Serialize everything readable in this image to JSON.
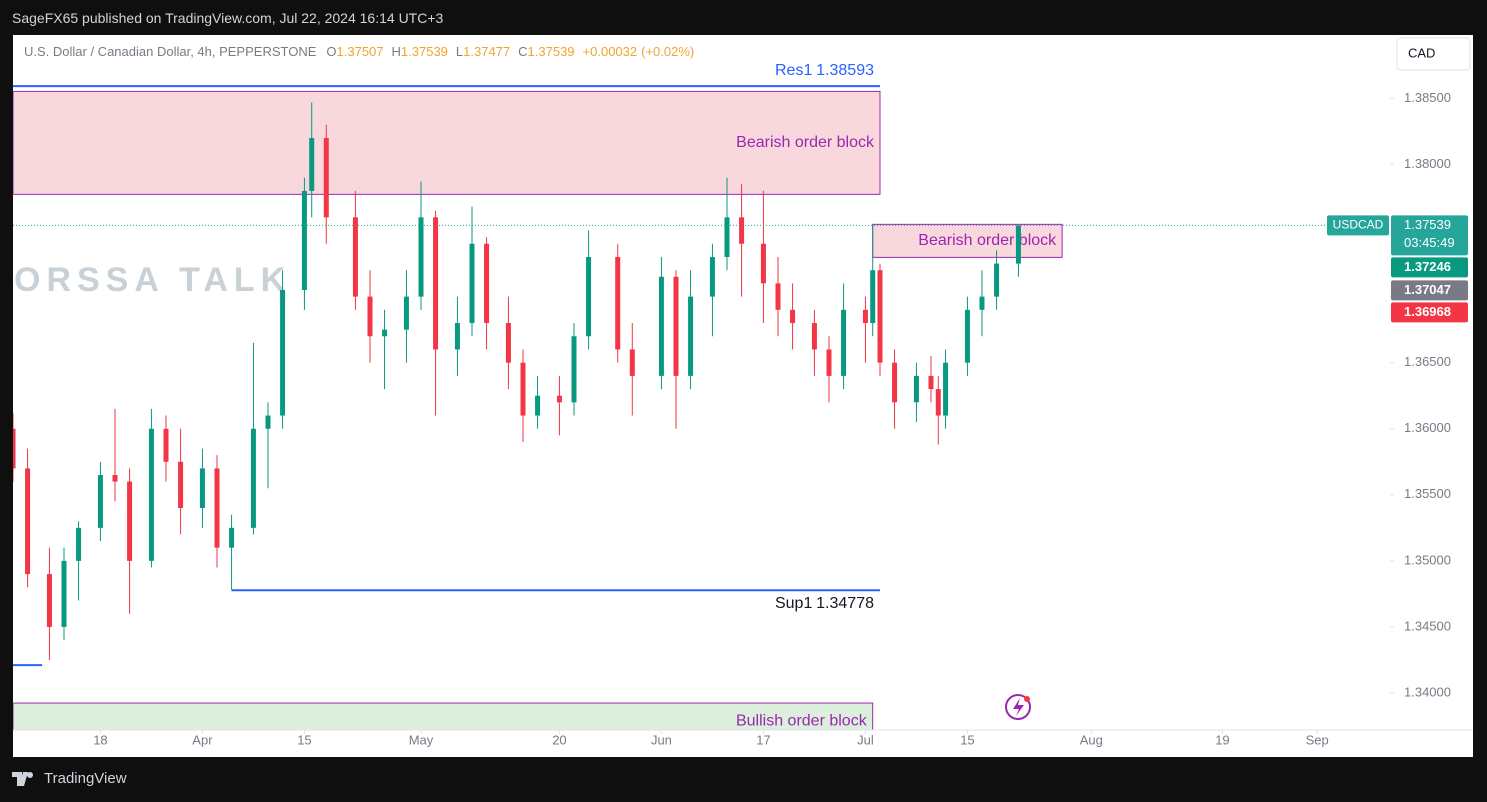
{
  "header": {
    "publisher": "SageFX65 published on TradingView.com, Jul 22, 2024 16:14 UTC+3"
  },
  "footer": {
    "brand": "TradingView"
  },
  "chart_data": {
    "type": "candlestick",
    "title": "U.S. Dollar / Canadian Dollar, 4h, PEPPERSTONE",
    "ohlc_legend": [
      {
        "label": "O",
        "value": 1.37507
      },
      {
        "label": "H",
        "value": 1.37539
      },
      {
        "label": "L",
        "value": 1.37477
      },
      {
        "label": "C",
        "value": 1.37539
      }
    ],
    "change": {
      "value": 0.00032,
      "label": "+0.00032"
    },
    "change_pct": {
      "value": 0.02,
      "label": "(+0.02%)"
    },
    "currency": "CAD",
    "symbol": "USDCAD",
    "countdown": "03:45:49",
    "watermark": "ORSSA TALK",
    "up_color": "#089981",
    "down_color": "#f23645",
    "x": [
      "Mar 6",
      "Mar 8",
      "Mar 11",
      "Mar 13",
      "Mar 15",
      "Mar 18",
      "Mar 20",
      "Mar 22",
      "Mar 25",
      "Mar 27",
      "Mar 29",
      "Apr 1",
      "Apr 3",
      "Apr 5",
      "Apr 8",
      "Apr 10",
      "Apr 12",
      "Apr 15",
      "Apr 16",
      "Apr 18",
      "Apr 22",
      "Apr 24",
      "Apr 26",
      "Apr 29",
      "May 1",
      "May 3",
      "May 6",
      "May 8",
      "May 10",
      "May 13",
      "May 15",
      "May 17",
      "May 20",
      "May 22",
      "May 24",
      "May 28",
      "May 30",
      "Jun 3",
      "Jun 5",
      "Jun 7",
      "Jun 10",
      "Jun 12",
      "Jun 14",
      "Jun 17",
      "Jun 19",
      "Jun 21",
      "Jun 24",
      "Jun 26",
      "Jun 28",
      "Jul 1",
      "Jul 2",
      "Jul 3",
      "Jul 5",
      "Jul 8",
      "Jul 10",
      "Jul 11",
      "Jul 12",
      "Jul 15",
      "Jul 17",
      "Jul 19",
      "Jul 22"
    ],
    "open": [
      1.36,
      1.357,
      1.349,
      1.345,
      1.35,
      1.3525,
      1.3565,
      1.356,
      1.35,
      1.36,
      1.3575,
      1.354,
      1.357,
      1.351,
      1.3525,
      1.36,
      1.361,
      1.3705,
      1.378,
      1.382,
      1.376,
      1.37,
      1.367,
      1.3675,
      1.37,
      1.376,
      1.366,
      1.368,
      1.374,
      1.368,
      1.365,
      1.361,
      1.3625,
      1.362,
      1.367,
      1.373,
      1.366,
      1.364,
      1.3715,
      1.364,
      1.37,
      1.373,
      1.376,
      1.374,
      1.371,
      1.369,
      1.368,
      1.366,
      1.364,
      1.369,
      1.368,
      1.372,
      1.365,
      1.362,
      1.364,
      1.363,
      1.361,
      1.365,
      1.369,
      1.37,
      1.3725
    ],
    "high": [
      1.3612,
      1.3585,
      1.351,
      1.351,
      1.353,
      1.3575,
      1.3615,
      1.357,
      1.3615,
      1.361,
      1.36,
      1.3585,
      1.358,
      1.3535,
      1.3665,
      1.362,
      1.372,
      1.379,
      1.3847,
      1.383,
      1.378,
      1.372,
      1.369,
      1.372,
      1.3787,
      1.3765,
      1.37,
      1.3768,
      1.3745,
      1.37,
      1.366,
      1.364,
      1.364,
      1.368,
      1.375,
      1.374,
      1.368,
      1.373,
      1.372,
      1.372,
      1.374,
      1.379,
      1.3785,
      1.378,
      1.373,
      1.371,
      1.369,
      1.367,
      1.371,
      1.37,
      1.3755,
      1.3725,
      1.366,
      1.365,
      1.3655,
      1.364,
      1.366,
      1.37,
      1.372,
      1.3735,
      1.37539
    ],
    "low": [
      1.356,
      1.348,
      1.3425,
      1.344,
      1.347,
      1.3515,
      1.3545,
      1.346,
      1.3495,
      1.356,
      1.352,
      1.3525,
      1.3495,
      1.3478,
      1.352,
      1.3555,
      1.36,
      1.369,
      1.376,
      1.374,
      1.369,
      1.365,
      1.363,
      1.365,
      1.369,
      1.361,
      1.364,
      1.367,
      1.366,
      1.363,
      1.359,
      1.36,
      1.3595,
      1.361,
      1.366,
      1.365,
      1.361,
      1.363,
      1.36,
      1.363,
      1.367,
      1.372,
      1.37,
      1.368,
      1.367,
      1.366,
      1.364,
      1.362,
      1.363,
      1.365,
      1.367,
      1.364,
      1.36,
      1.3605,
      1.362,
      1.3588,
      1.36,
      1.364,
      1.367,
      1.369,
      1.3715
    ],
    "close": [
      1.357,
      1.349,
      1.345,
      1.35,
      1.3525,
      1.3565,
      1.356,
      1.35,
      1.36,
      1.3575,
      1.354,
      1.357,
      1.351,
      1.3525,
      1.36,
      1.361,
      1.3705,
      1.378,
      1.382,
      1.376,
      1.37,
      1.367,
      1.3675,
      1.37,
      1.376,
      1.366,
      1.368,
      1.374,
      1.368,
      1.365,
      1.361,
      1.3625,
      1.362,
      1.367,
      1.373,
      1.366,
      1.364,
      1.3715,
      1.364,
      1.37,
      1.373,
      1.376,
      1.374,
      1.371,
      1.369,
      1.368,
      1.366,
      1.364,
      1.369,
      1.368,
      1.372,
      1.365,
      1.362,
      1.364,
      1.363,
      1.361,
      1.365,
      1.369,
      1.37,
      1.3725,
      1.37539
    ],
    "xlim": [
      "Mar 6",
      "Sep 11"
    ],
    "xticks": [
      {
        "value": "Mar 18",
        "label": "18"
      },
      {
        "value": "Apr 1",
        "label": "Apr"
      },
      {
        "value": "Apr 15",
        "label": "15"
      },
      {
        "value": "May 1",
        "label": "May"
      },
      {
        "value": "May 20",
        "label": "20"
      },
      {
        "value": "Jun 3",
        "label": "Jun"
      },
      {
        "value": "Jun 17",
        "label": "17"
      },
      {
        "value": "Jul 1",
        "label": "Jul"
      },
      {
        "value": "Jul 15",
        "label": "15"
      },
      {
        "value": "Aug 1",
        "label": "Aug"
      },
      {
        "value": "Aug 19",
        "label": "19"
      },
      {
        "value": "Sep 1",
        "label": "Sep"
      }
    ],
    "ylim": [
      1.3372,
      1.3898
    ],
    "yticks": [
      {
        "value": 1.34,
        "label": "1.34000"
      },
      {
        "value": 1.345,
        "label": "1.34500"
      },
      {
        "value": 1.35,
        "label": "1.35000"
      },
      {
        "value": 1.355,
        "label": "1.35500"
      },
      {
        "value": 1.36,
        "label": "1.36000"
      },
      {
        "value": 1.365,
        "label": "1.36500"
      },
      {
        "value": 1.37,
        "label": "1.37000"
      },
      {
        "value": 1.375,
        "label": "1.37500"
      },
      {
        "value": 1.38,
        "label": "1.38000"
      },
      {
        "value": 1.385,
        "label": "1.38500"
      }
    ],
    "price_tags": [
      {
        "value": 1.37539,
        "color": "#26a69a"
      },
      {
        "value": 1.37246,
        "color": "#089981"
      },
      {
        "value": 1.37047,
        "color": "#787b86"
      },
      {
        "value": 1.36968,
        "color": "#f23645"
      }
    ],
    "levels": [
      {
        "name": "Res1",
        "value": 1.38593,
        "start": "Mar 6",
        "end": "Jul 3",
        "color": "#2962ff",
        "label_color": "#2962ff"
      },
      {
        "name": "Sup1",
        "value": 1.34778,
        "start": "Apr 5",
        "end": "Jul 3",
        "color": "#2962ff",
        "label_color": "#131722"
      },
      {
        "value": 1.34211,
        "start": "Mar 6",
        "end": "Mar 10",
        "color": "#2962ff"
      }
    ],
    "zones": [
      {
        "label": "Bearish order block",
        "top": 1.38553,
        "bottom": 1.37774,
        "start": "Mar 6",
        "end": "Jul 3",
        "fill": "#f8d7dd",
        "stroke": "#9c27b0"
      },
      {
        "label": "Bearish order block",
        "top": 1.37547,
        "bottom": 1.37297,
        "start": "Jul 2",
        "end": "Jul 28",
        "fill": "#f8d7dd",
        "stroke": "#9c27b0"
      },
      {
        "label": "Bullish order block",
        "top": 1.33924,
        "bottom": 1.3365,
        "start": "Mar 6",
        "end": "Jul 2",
        "fill": "#dcefdc",
        "stroke": "#9c27b0"
      }
    ]
  }
}
